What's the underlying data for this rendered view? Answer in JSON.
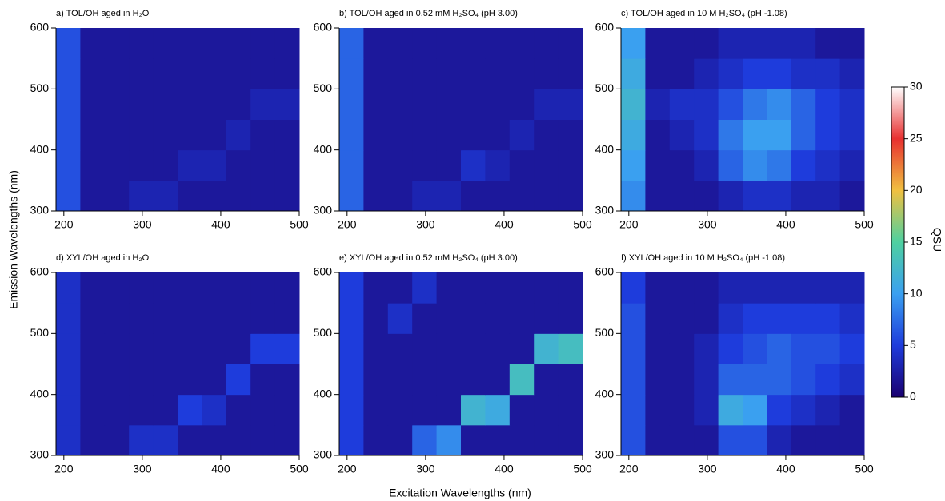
{
  "x_label": "Excitation Wavelengths (nm)",
  "y_label": "Emission Wavelengths (nm)",
  "colorbar": {
    "label": "QSU",
    "lim": [
      0,
      30
    ],
    "ticks": [
      0,
      5,
      10,
      15,
      20,
      25,
      30
    ],
    "colors": [
      "#1a0070",
      "#1e3cdc",
      "#3aa0f0",
      "#4ed0a0",
      "#f0c040",
      "#e83030",
      "#ffffff"
    ]
  },
  "chart_data": [
    {
      "type": "heatmap",
      "title": "a) TOL/OH aged in H₂O",
      "xlim": [
        190,
        500
      ],
      "ylim": [
        300,
        600
      ],
      "xticks": [
        200,
        300,
        400,
        500
      ],
      "yticks": [
        300,
        400,
        500,
        600
      ],
      "xbins": [
        190,
        221,
        252,
        283,
        314,
        345,
        376,
        407,
        438,
        469,
        500
      ],
      "ybins": [
        300,
        350,
        400,
        450,
        500,
        550,
        600
      ],
      "z": [
        [
          6,
          2,
          2,
          3,
          3,
          2,
          2,
          2,
          2,
          2
        ],
        [
          6,
          2,
          2,
          2,
          2,
          3,
          3,
          2,
          2,
          2
        ],
        [
          6,
          2,
          2,
          2,
          2,
          2,
          2,
          3,
          2,
          2
        ],
        [
          6,
          2,
          2,
          2,
          2,
          2,
          2,
          2,
          3,
          3
        ],
        [
          6,
          2,
          2,
          2,
          2,
          2,
          2,
          2,
          2,
          2
        ],
        [
          6,
          2,
          2,
          2,
          2,
          2,
          2,
          2,
          2,
          2
        ]
      ]
    },
    {
      "type": "heatmap",
      "title": "b) TOL/OH aged in 0.52 mM H₂SO₄ (pH 3.00)",
      "xlim": [
        190,
        500
      ],
      "ylim": [
        300,
        600
      ],
      "xticks": [
        200,
        300,
        400,
        500
      ],
      "yticks": [
        300,
        400,
        500,
        600
      ],
      "xbins": [
        190,
        221,
        252,
        283,
        314,
        345,
        376,
        407,
        438,
        469,
        500
      ],
      "ybins": [
        300,
        350,
        400,
        450,
        500,
        550,
        600
      ],
      "z": [
        [
          7,
          2,
          2,
          3,
          3,
          2,
          2,
          2,
          2,
          2
        ],
        [
          7,
          2,
          2,
          2,
          2,
          4,
          3,
          2,
          2,
          2
        ],
        [
          7,
          2,
          2,
          2,
          2,
          2,
          2,
          3,
          2,
          2
        ],
        [
          7,
          2,
          2,
          2,
          2,
          2,
          2,
          2,
          3,
          3
        ],
        [
          7,
          2,
          2,
          2,
          2,
          2,
          2,
          2,
          2,
          2
        ],
        [
          7,
          2,
          2,
          2,
          2,
          2,
          2,
          2,
          2,
          2
        ]
      ]
    },
    {
      "type": "heatmap",
      "title": "c) TOL/OH aged in 10 M H₂SO₄ (pH -1.08)",
      "xlim": [
        190,
        500
      ],
      "ylim": [
        300,
        600
      ],
      "xticks": [
        200,
        300,
        400,
        500
      ],
      "yticks": [
        300,
        400,
        500,
        600
      ],
      "xbins": [
        190,
        221,
        252,
        283,
        314,
        345,
        376,
        407,
        438,
        469,
        500
      ],
      "ybins": [
        300,
        350,
        400,
        450,
        500,
        550,
        600
      ],
      "z": [
        [
          9,
          2,
          2,
          2,
          3,
          4,
          4,
          3,
          3,
          2
        ],
        [
          10,
          2,
          2,
          3,
          7,
          9,
          8,
          5,
          4,
          3
        ],
        [
          11,
          2,
          3,
          4,
          8,
          10,
          10,
          7,
          5,
          4
        ],
        [
          12,
          3,
          4,
          4,
          6,
          8,
          9,
          7,
          5,
          4
        ],
        [
          11,
          2,
          2,
          3,
          4,
          5,
          5,
          4,
          4,
          3
        ],
        [
          10,
          2,
          2,
          2,
          3,
          3,
          3,
          3,
          2,
          2
        ]
      ]
    },
    {
      "type": "heatmap",
      "title": "d) XYL/OH aged in H₂O",
      "xlim": [
        190,
        500
      ],
      "ylim": [
        300,
        600
      ],
      "xticks": [
        200,
        300,
        400,
        500
      ],
      "yticks": [
        300,
        400,
        500,
        600
      ],
      "xbins": [
        190,
        221,
        252,
        283,
        314,
        345,
        376,
        407,
        438,
        469,
        500
      ],
      "ybins": [
        300,
        350,
        400,
        450,
        500,
        550,
        600
      ],
      "z": [
        [
          4,
          2,
          2,
          4,
          4,
          2,
          2,
          2,
          2,
          2
        ],
        [
          4,
          2,
          2,
          2,
          2,
          5,
          4,
          2,
          2,
          2
        ],
        [
          4,
          2,
          2,
          2,
          2,
          2,
          2,
          5,
          2,
          2
        ],
        [
          4,
          2,
          2,
          2,
          2,
          2,
          2,
          2,
          5,
          5
        ],
        [
          4,
          2,
          2,
          2,
          2,
          2,
          2,
          2,
          2,
          2
        ],
        [
          4,
          2,
          2,
          2,
          2,
          2,
          2,
          2,
          2,
          2
        ]
      ]
    },
    {
      "type": "heatmap",
      "title": "e) XYL/OH aged in 0.52 mM H₂SO₄ (pH 3.00)",
      "xlim": [
        190,
        500
      ],
      "ylim": [
        300,
        600
      ],
      "xticks": [
        200,
        300,
        400,
        500
      ],
      "yticks": [
        300,
        400,
        500,
        600
      ],
      "xbins": [
        190,
        221,
        252,
        283,
        314,
        345,
        376,
        407,
        438,
        469,
        500
      ],
      "ybins": [
        300,
        350,
        400,
        450,
        500,
        550,
        600
      ],
      "z": [
        [
          5,
          2,
          2,
          7,
          9,
          2,
          2,
          2,
          2,
          2
        ],
        [
          5,
          2,
          2,
          2,
          2,
          12,
          11,
          2,
          2,
          2
        ],
        [
          5,
          2,
          2,
          2,
          2,
          2,
          2,
          13,
          2,
          2
        ],
        [
          5,
          2,
          2,
          2,
          2,
          2,
          2,
          2,
          12,
          13
        ],
        [
          5,
          2,
          4,
          2,
          2,
          2,
          2,
          2,
          2,
          2
        ],
        [
          5,
          2,
          2,
          4,
          2,
          2,
          2,
          2,
          2,
          2
        ]
      ]
    },
    {
      "type": "heatmap",
      "title": "f) XYL/OH aged in 10 M H₂SO₄ (pH -1.08)",
      "xlim": [
        190,
        500
      ],
      "ylim": [
        300,
        600
      ],
      "xticks": [
        200,
        300,
        400,
        500
      ],
      "yticks": [
        300,
        400,
        500,
        600
      ],
      "xbins": [
        190,
        221,
        252,
        283,
        314,
        345,
        376,
        407,
        438,
        469,
        500
      ],
      "ybins": [
        300,
        350,
        400,
        450,
        500,
        550,
        600
      ],
      "z": [
        [
          6,
          2,
          2,
          2,
          6,
          6,
          3,
          2,
          2,
          2
        ],
        [
          6,
          2,
          2,
          3,
          11,
          10,
          5,
          4,
          3,
          2
        ],
        [
          6,
          2,
          2,
          3,
          7,
          7,
          7,
          6,
          5,
          4
        ],
        [
          6,
          2,
          2,
          3,
          5,
          6,
          7,
          6,
          6,
          5
        ],
        [
          6,
          2,
          2,
          2,
          4,
          5,
          5,
          5,
          5,
          4
        ],
        [
          5,
          2,
          2,
          2,
          3,
          3,
          3,
          3,
          3,
          3
        ]
      ]
    }
  ]
}
